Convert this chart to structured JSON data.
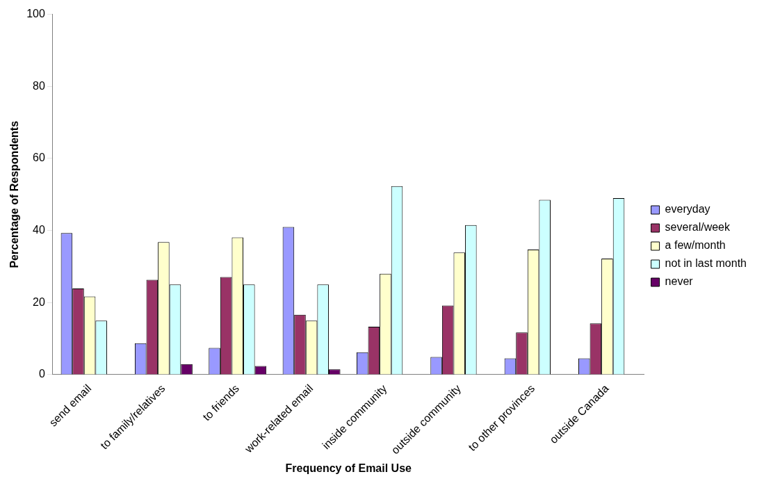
{
  "chart_data": {
    "type": "bar",
    "xlabel": "Frequency of Email Use",
    "ylabel": "Percentage of Respondents",
    "categories": [
      "send email",
      "to family/relatives",
      "to friends",
      "work-related email",
      "inside community",
      "outside community",
      "to other provinces",
      "outside Canada"
    ],
    "series": [
      {
        "name": "everyday",
        "color": "#9999ff",
        "values": [
          39.3,
          8.7,
          7.4,
          41.0,
          6.2,
          4.9,
          4.5,
          4.5
        ]
      },
      {
        "name": "several/week",
        "color": "#993366",
        "values": [
          23.9,
          26.3,
          27.1,
          16.6,
          13.3,
          19.2,
          11.7,
          14.2
        ]
      },
      {
        "name": "a few/month",
        "color": "#ffffcc",
        "values": [
          21.7,
          36.8,
          38.1,
          15.0,
          28.0,
          33.9,
          34.7,
          32.2
        ]
      },
      {
        "name": "not in last month",
        "color": "#ccffff",
        "values": [
          15.0,
          25.0,
          25.0,
          25.0,
          52.3,
          41.5,
          48.5,
          49.0
        ]
      },
      {
        "name": "never",
        "color": "#660066",
        "values": [
          null,
          2.9,
          2.4,
          1.5,
          null,
          null,
          null,
          null
        ]
      }
    ],
    "ylim": [
      0,
      100
    ],
    "yticks": [
      0,
      20,
      40,
      60,
      80,
      100
    ],
    "grid": false,
    "legend": "right"
  }
}
